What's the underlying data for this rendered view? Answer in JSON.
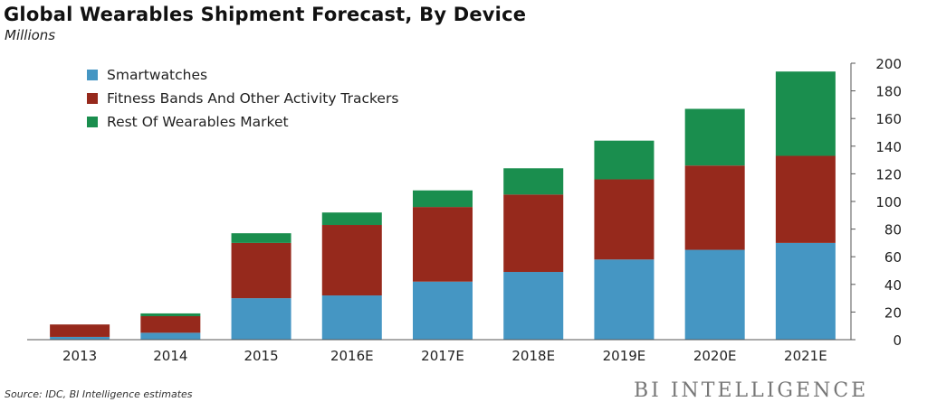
{
  "header": {
    "title": "Global Wearables Shipment Forecast, By Device",
    "subtitle": "Millions"
  },
  "footer": {
    "source": "Source: IDC, BI Intelligence estimates",
    "brand": "BI INTELLIGENCE"
  },
  "colors": {
    "smartwatches": "#4596c3",
    "fitness": "#96291c",
    "rest": "#1a8e4e",
    "axis": "#555555",
    "text": "#222222"
  },
  "chart_data": {
    "type": "bar",
    "stacked": true,
    "title": "Global Wearables Shipment Forecast, By Device",
    "subtitle": "Millions",
    "categories": [
      "2013",
      "2014",
      "2015",
      "2016E",
      "2017E",
      "2018E",
      "2019E",
      "2020E",
      "2021E"
    ],
    "series": [
      {
        "name": "Smartwatches",
        "values": [
          2,
          5,
          30,
          32,
          42,
          49,
          58,
          65,
          70
        ]
      },
      {
        "name": "Fitness Bands And Other Activity Trackers",
        "values": [
          9,
          12,
          40,
          51,
          54,
          56,
          58,
          61,
          63
        ]
      },
      {
        "name": "Rest Of Wearables Market",
        "values": [
          0,
          2,
          7,
          9,
          12,
          19,
          28,
          41,
          61
        ]
      }
    ],
    "ylim": [
      0,
      200
    ],
    "yticks": [
      0,
      20,
      40,
      60,
      80,
      100,
      120,
      140,
      160,
      180,
      200
    ],
    "y_axis_side": "right",
    "legend_position": "top-left",
    "grid": false
  }
}
